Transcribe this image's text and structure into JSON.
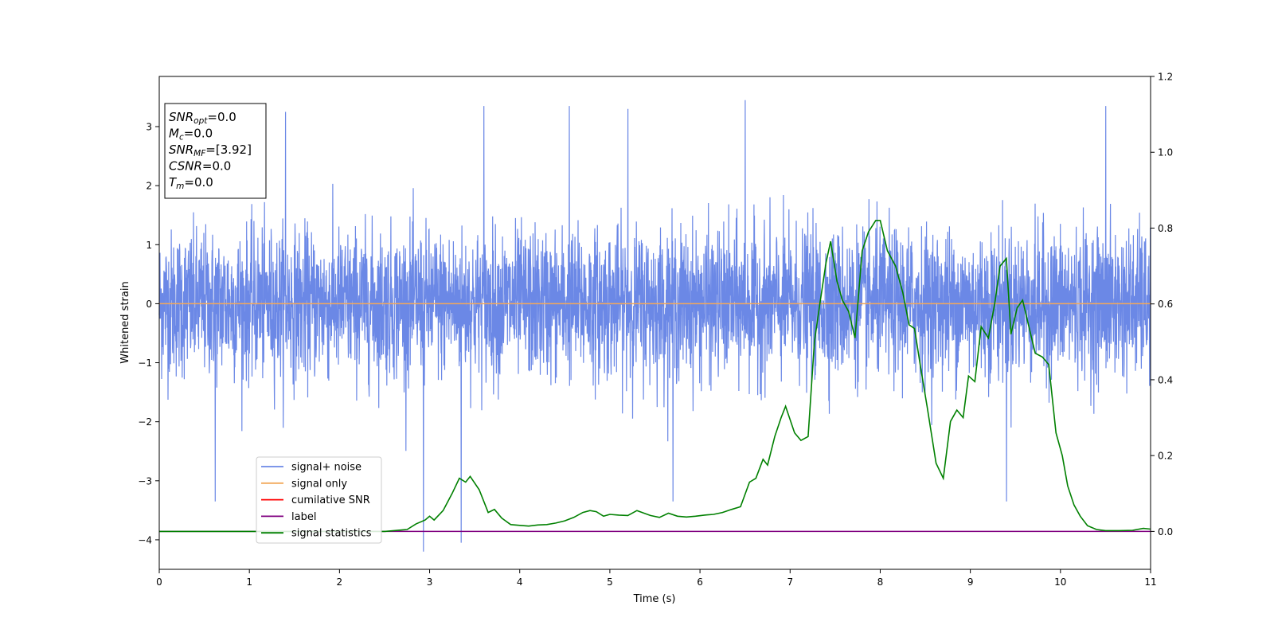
{
  "colors": {
    "signal_noise": "#6b88e6",
    "signal_only": "#f2a85a",
    "cumulative_snr": "#ff0000",
    "label": "#800080",
    "signal_statistics": "#008000"
  },
  "info_box": {
    "lines": [
      {
        "main": "SNR",
        "sub": "opt",
        "value": "=0.0"
      },
      {
        "main": "M",
        "sub": "c",
        "value": "=0.0"
      },
      {
        "main": "SNR",
        "sub": "MF",
        "value": "=[3.92]"
      },
      {
        "main": "CSNR",
        "sub": "",
        "value": "=0.0"
      },
      {
        "main": "T",
        "sub": "m",
        "value": "=0.0"
      }
    ]
  },
  "legend": {
    "items": [
      {
        "label": "signal+ noise",
        "color_key": "signal_noise"
      },
      {
        "label": "signal only",
        "color_key": "signal_only"
      },
      {
        "label": "cumilative SNR",
        "color_key": "cumulative_snr"
      },
      {
        "label": "label",
        "color_key": "label"
      },
      {
        "label": "signal statistics",
        "color_key": "signal_statistics"
      }
    ]
  },
  "chart_data": {
    "type": "line",
    "xlabel": "Time (s)",
    "ylabel": "Whitened strain",
    "xlim": [
      0,
      11
    ],
    "ylim": [
      -4.5,
      3.85
    ],
    "y2lim": [
      -0.1,
      1.2
    ],
    "xticks": [
      "0",
      "1",
      "2",
      "3",
      "4",
      "5",
      "6",
      "7",
      "8",
      "9",
      "10",
      "11"
    ],
    "yticks": [
      "-4",
      "-3",
      "-2",
      "-1",
      "0",
      "1",
      "2",
      "3"
    ],
    "y2ticks": [
      "0.0",
      "0.2",
      "0.4",
      "0.6",
      "0.8",
      "1.0",
      "1.2"
    ],
    "noise_envelope": {
      "typical_amplitude": [
        -1.5,
        1.5
      ],
      "extremes": [
        -4.2,
        3.5
      ],
      "notable_spikes": [
        {
          "x": 0.62,
          "y": -3.35
        },
        {
          "x": 1.4,
          "y": 3.25
        },
        {
          "x": 2.93,
          "y": -4.2
        },
        {
          "x": 3.35,
          "y": -4.05
        },
        {
          "x": 3.6,
          "y": 3.35
        },
        {
          "x": 4.55,
          "y": 3.35
        },
        {
          "x": 5.2,
          "y": 3.3
        },
        {
          "x": 5.7,
          "y": -3.35
        },
        {
          "x": 6.5,
          "y": 3.45
        },
        {
          "x": 9.4,
          "y": -3.35
        },
        {
          "x": 10.5,
          "y": 3.35
        }
      ]
    },
    "series": [
      {
        "name": "signal only",
        "axis": "left",
        "x": [
          0,
          11
        ],
        "y": [
          0,
          0
        ]
      },
      {
        "name": "label",
        "axis": "right",
        "x": [
          0,
          11
        ],
        "y": [
          0,
          0
        ]
      },
      {
        "name": "signal statistics",
        "axis": "right",
        "x": [
          0,
          0.5,
          1.0,
          1.5,
          2.0,
          2.5,
          2.75,
          2.85,
          2.95,
          3.0,
          3.05,
          3.15,
          3.25,
          3.33,
          3.4,
          3.45,
          3.55,
          3.65,
          3.72,
          3.8,
          3.9,
          4.0,
          4.1,
          4.2,
          4.3,
          4.4,
          4.5,
          4.6,
          4.7,
          4.78,
          4.85,
          4.93,
          5.0,
          5.1,
          5.2,
          5.3,
          5.45,
          5.55,
          5.65,
          5.75,
          5.85,
          5.95,
          6.05,
          6.15,
          6.25,
          6.35,
          6.45,
          6.55,
          6.62,
          6.7,
          6.75,
          6.83,
          6.9,
          6.95,
          7.05,
          7.12,
          7.2,
          7.27,
          7.33,
          7.4,
          7.45,
          7.52,
          7.58,
          7.65,
          7.72,
          7.8,
          7.87,
          7.95,
          8.0,
          8.08,
          8.17,
          8.25,
          8.32,
          8.38,
          8.45,
          8.52,
          8.62,
          8.7,
          8.78,
          8.85,
          8.92,
          8.98,
          9.05,
          9.12,
          9.2,
          9.27,
          9.33,
          9.4,
          9.45,
          9.52,
          9.58,
          9.65,
          9.72,
          9.8,
          9.87,
          9.95,
          10.02,
          10.08,
          10.15,
          10.22,
          10.3,
          10.4,
          10.5,
          10.65,
          10.8,
          10.92,
          11.0
        ],
        "y": [
          0.0,
          0.0,
          0.0,
          0.0,
          0.0,
          0.0,
          0.005,
          0.02,
          0.03,
          0.04,
          0.03,
          0.055,
          0.1,
          0.14,
          0.13,
          0.145,
          0.11,
          0.05,
          0.058,
          0.035,
          0.018,
          0.016,
          0.014,
          0.017,
          0.018,
          0.022,
          0.028,
          0.037,
          0.05,
          0.055,
          0.052,
          0.04,
          0.045,
          0.043,
          0.042,
          0.055,
          0.042,
          0.037,
          0.048,
          0.04,
          0.038,
          0.04,
          0.043,
          0.045,
          0.05,
          0.058,
          0.065,
          0.13,
          0.14,
          0.19,
          0.175,
          0.25,
          0.3,
          0.33,
          0.26,
          0.24,
          0.25,
          0.5,
          0.6,
          0.71,
          0.765,
          0.66,
          0.61,
          0.58,
          0.51,
          0.74,
          0.79,
          0.82,
          0.82,
          0.74,
          0.7,
          0.63,
          0.545,
          0.535,
          0.43,
          0.33,
          0.18,
          0.14,
          0.29,
          0.32,
          0.3,
          0.41,
          0.395,
          0.54,
          0.51,
          0.6,
          0.7,
          0.72,
          0.52,
          0.59,
          0.61,
          0.54,
          0.47,
          0.46,
          0.44,
          0.26,
          0.2,
          0.12,
          0.07,
          0.04,
          0.015,
          0.005,
          0.002,
          0.002,
          0.003,
          0.008,
          0.006
        ]
      }
    ]
  }
}
